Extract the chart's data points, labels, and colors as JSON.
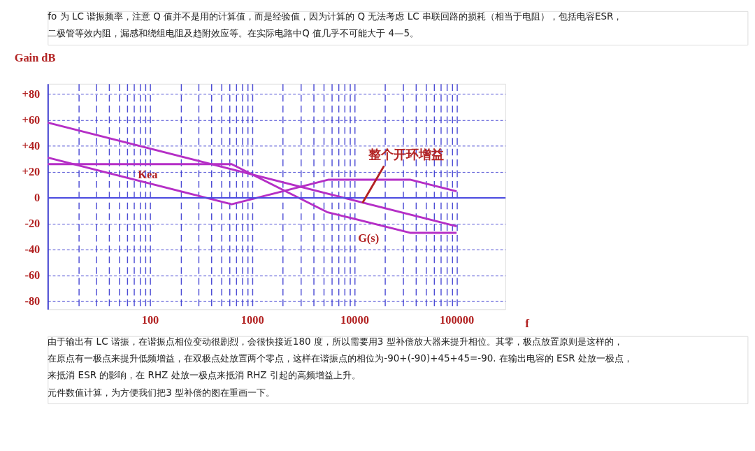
{
  "chart_data": {
    "type": "line",
    "xlabel": "f",
    "ylabel": "Gain dB",
    "log": "x",
    "xlim": [
      10,
      300000
    ],
    "ylim": [
      -86,
      88
    ],
    "xticks": [
      {
        "value": 20,
        "label": null
      },
      {
        "value": 30,
        "label": null
      },
      {
        "value": 40,
        "label": null
      },
      {
        "value": 50,
        "label": null
      },
      {
        "value": 60,
        "label": null
      },
      {
        "value": 70,
        "label": null
      },
      {
        "value": 80,
        "label": null
      },
      {
        "value": 90,
        "label": null
      },
      100,
      {
        "value": 200,
        "label": null
      },
      {
        "value": 300,
        "label": null
      },
      {
        "value": 400,
        "label": null
      },
      {
        "value": 500,
        "label": null
      },
      {
        "value": 600,
        "label": null
      },
      {
        "value": 700,
        "label": null
      },
      {
        "value": 800,
        "label": null
      },
      {
        "value": 900,
        "label": null
      },
      1000,
      {
        "value": 2000,
        "label": null
      },
      {
        "value": 3000,
        "label": null
      },
      {
        "value": 4000,
        "label": null
      },
      {
        "value": 5000,
        "label": null
      },
      {
        "value": 6000,
        "label": null
      },
      {
        "value": 7000,
        "label": null
      },
      {
        "value": 8000,
        "label": null
      },
      {
        "value": 9000,
        "label": null
      },
      10000,
      {
        "value": 20000,
        "label": null
      },
      {
        "value": 30000,
        "label": null
      },
      {
        "value": 40000,
        "label": null
      },
      {
        "value": 50000,
        "label": null
      },
      {
        "value": 60000,
        "label": null
      },
      {
        "value": 70000,
        "label": null
      },
      {
        "value": 80000,
        "label": null
      },
      {
        "value": 90000,
        "label": null
      },
      100000
    ],
    "yticks": [
      {
        "value": 80,
        "label": "+80"
      },
      {
        "value": 60,
        "label": "+60"
      },
      {
        "value": 40,
        "label": "+40"
      },
      {
        "value": 20,
        "label": "+20"
      },
      0,
      -20,
      -40,
      -60,
      -80
    ],
    "grid": true,
    "marker": "none",
    "line_style": "solid",
    "ref_lines": [
      {
        "axis": "y",
        "value": 0,
        "color": "#4a4ae0"
      }
    ],
    "series": [
      {
        "color": "#b52fc6",
        "x": [
          10,
          100000
        ],
        "values": [
          58,
          -22
        ]
      },
      {
        "name": "Kea",
        "color": "#b52fc6",
        "x": [
          10,
          630,
          5600,
          35000,
          100000
        ],
        "values": [
          31,
          -5,
          14,
          14,
          5
        ]
      },
      {
        "name": "G(s)",
        "color": "#b52fc6",
        "x": [
          10,
          630,
          5400,
          35000,
          100000
        ],
        "values": [
          26,
          26,
          -11,
          -27,
          -27
        ]
      }
    ],
    "annotations": [
      "fo 为 LC 谐振频率，注意 Q 值并不是用的计算值，而是经验值，因为计算的 Q 无法考虑 LC 串联回路的损耗（相当于电阻），包括电容ESR，",
      "二极管等效内阻，漏感和绕组电阻及趋附效应等。在实际电路中Q 值几乎不可能大于 4—5。",
      "由于输出有 LC 谐振，在谐振点相位变动很剧烈，会很快接近180 度，所以需要用3 型补偿放大器来提升相位。其零，极点放置原则是这样的，",
      "在原点有一极点来提升低频增益，在双极点处放置两个零点，这样在谐振点的相位为-90+(-90)+45+45=-90. 在输出电容的 ESR 处放一极点，",
      "来抵消 ESR 的影响，在 RHZ 处放一极点来抵消 RHZ 引起的高频增益上升。",
      " 元件数值计算，为方便我们把3 型补偿的图在重画一下。",
      {
        "text": "整个开环增益",
        "x": 12000,
        "y": -4
      }
    ]
  }
}
